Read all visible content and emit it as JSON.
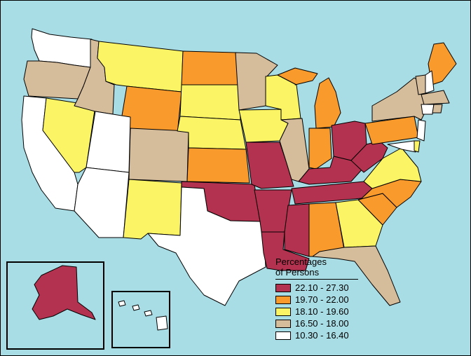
{
  "legend": {
    "title_line1": "Percentages",
    "title_line2": "of Persons",
    "classes": [
      {
        "label": "22.10 - 27.30",
        "color": "#b3324f"
      },
      {
        "label": "19.70 - 22.00",
        "color": "#f99a2d"
      },
      {
        "label": "18.10 - 19.60",
        "color": "#fbf565"
      },
      {
        "label": "16.50 - 18.00",
        "color": "#d5bc9b"
      },
      {
        "label": "10.30 - 16.40",
        "color": "#ffffff"
      }
    ]
  },
  "colors": {
    "water": "#a9dde6",
    "class_1": "#b3324f",
    "class_2": "#f99a2d",
    "class_3": "#fbf565",
    "class_4": "#d5bc9b",
    "class_5": "#ffffff"
  },
  "states": {
    "WA": 5,
    "OR": 4,
    "CA": 5,
    "NV": 3,
    "ID": 4,
    "MT": 3,
    "WY": 2,
    "UT": 5,
    "AZ": 5,
    "CO": 4,
    "NM": 3,
    "ND": 2,
    "SD": 3,
    "NE": 3,
    "KS": 2,
    "OK": 1,
    "TX": 5,
    "MN": 4,
    "IA": 3,
    "MO": 1,
    "AR": 1,
    "LA": 1,
    "WI": 3,
    "IL": 4,
    "MI": 2,
    "IN": 2,
    "OH": 1,
    "KY": 1,
    "TN": 1,
    "MS": 1,
    "AL": 2,
    "GA": 3,
    "FL": 4,
    "SC": 2,
    "NC": 2,
    "VA": 3,
    "WV": 1,
    "PA": 2,
    "NY": 4,
    "ME": 2,
    "VT": 4,
    "NH": 5,
    "MA": 4,
    "CT": 5,
    "NJ": 5,
    "MD": 5,
    "DE": 3,
    "RI": 4,
    "AK": 1,
    "HI": 5
  }
}
